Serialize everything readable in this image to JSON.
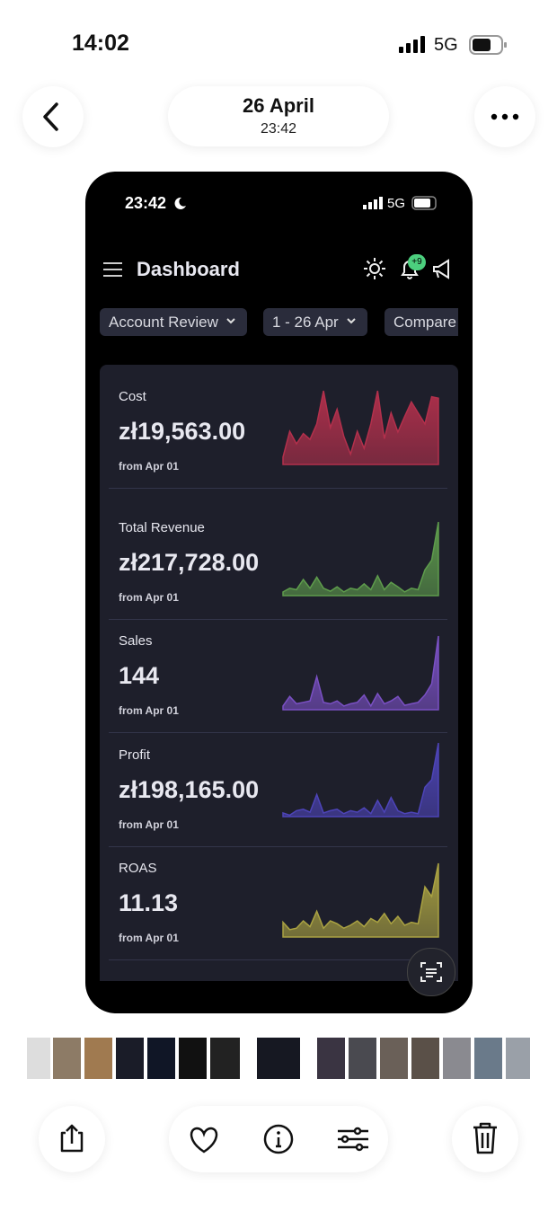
{
  "status": {
    "time": "14:02",
    "network": "5G"
  },
  "header": {
    "date": "26 April",
    "time": "23:42"
  },
  "screenshot": {
    "status": {
      "time": "23:42",
      "network": "5G"
    },
    "title": "Dashboard",
    "badge": "+9",
    "filters": [
      "Account Review",
      "1 - 26 Apr",
      "Compare"
    ],
    "metrics": [
      {
        "label": "Cost",
        "value": "zł19,563.00",
        "note": "from Apr 01",
        "color": "#b3304c",
        "trend": [
          10,
          45,
          28,
          42,
          34,
          55,
          100,
          50,
          75,
          38,
          14,
          45,
          22,
          55,
          100,
          35,
          70,
          44,
          65,
          85,
          70,
          55,
          92,
          90
        ]
      },
      {
        "label": "Total Revenue",
        "value": "zł217,728.00",
        "note": "from Apr 01",
        "color": "#5e9c4c",
        "trend": [
          5,
          10,
          8,
          22,
          10,
          25,
          10,
          6,
          12,
          5,
          10,
          8,
          16,
          8,
          27,
          8,
          18,
          12,
          5,
          10,
          8,
          35,
          48,
          100
        ]
      },
      {
        "label": "Sales",
        "value": "144",
        "note": "from Apr 01",
        "color": "#7a50c4",
        "trend": [
          5,
          18,
          8,
          10,
          12,
          45,
          10,
          8,
          12,
          5,
          8,
          10,
          20,
          5,
          22,
          8,
          12,
          18,
          6,
          8,
          10,
          20,
          35,
          100
        ]
      },
      {
        "label": "Profit",
        "value": "zł198,165.00",
        "note": "from Apr 01",
        "color": "#4d44b8",
        "trend": [
          5,
          2,
          8,
          10,
          6,
          30,
          5,
          8,
          10,
          4,
          8,
          6,
          12,
          4,
          22,
          6,
          26,
          8,
          4,
          6,
          4,
          40,
          50,
          100
        ]
      },
      {
        "label": "ROAS",
        "value": "11.13",
        "note": "from Apr 01",
        "color": "#aaa242",
        "trend": [
          20,
          10,
          12,
          22,
          14,
          35,
          12,
          22,
          18,
          12,
          16,
          22,
          14,
          25,
          20,
          32,
          18,
          28,
          16,
          20,
          18,
          68,
          55,
          100
        ]
      }
    ]
  }
}
